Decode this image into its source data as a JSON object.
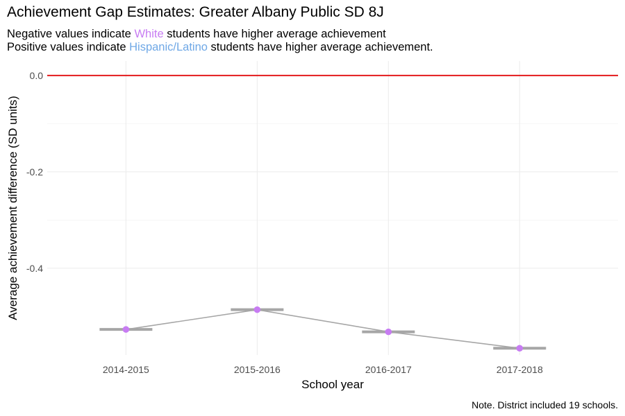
{
  "header": {
    "title": "Achievement Gap Estimates: Greater Albany Public SD 8J",
    "subtitle_line1": {
      "prefix": "Negative values indicate ",
      "highlight": "White",
      "suffix": " students have higher average achievement"
    },
    "subtitle_line2": {
      "prefix": "Positive values indicate ",
      "highlight": "Hispanic/Latino",
      "suffix": " students have higher average achievement."
    }
  },
  "caption": "Note. District included 19 schools.",
  "colors": {
    "white_group": "#c77cf2",
    "hispanic_group": "#6fa8e6",
    "reference_line": "#e31a1c",
    "trend_line": "#a6a6a6",
    "point": "#c77cf2"
  },
  "chart_data": {
    "type": "line",
    "xlabel": "School year",
    "ylabel": "Average achievement difference (SD units)",
    "categories": [
      "2014-2015",
      "2015-2016",
      "2016-2017",
      "2017-2018"
    ],
    "values": [
      -0.527,
      -0.486,
      -0.532,
      -0.566
    ],
    "reference_line_y": 0.0,
    "ylim": [
      -0.58,
      0.03
    ],
    "yticks": [
      0.0,
      -0.2,
      -0.4
    ],
    "ytick_labels": [
      "0.0",
      "-0.2",
      "-0.4"
    ],
    "grid": true,
    "legend": "none"
  }
}
